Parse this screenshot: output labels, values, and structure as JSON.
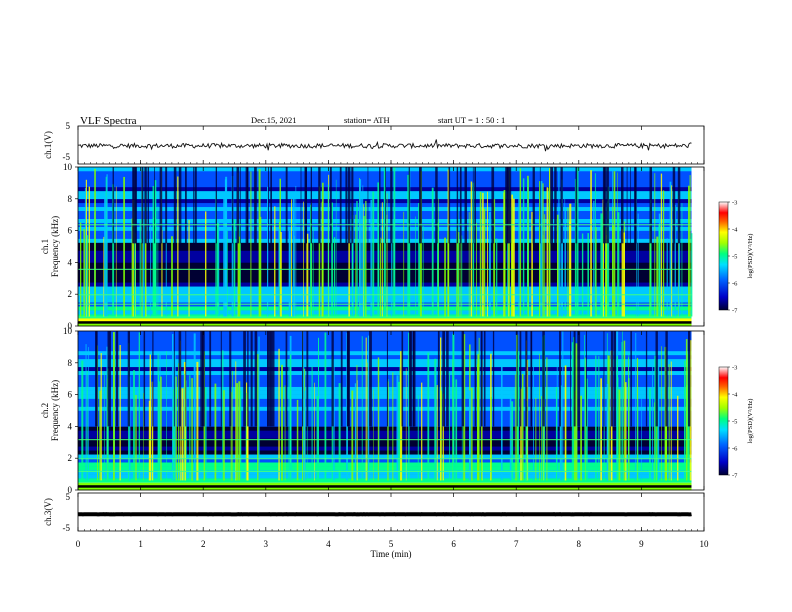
{
  "header": {
    "title": "VLF  Spectra",
    "date": "Dec.15, 2021",
    "station": "station= ATH",
    "start": "start  UT  =    1  : 50 : 1"
  },
  "chart_data": [
    {
      "type": "line",
      "name": "ch1-waveform",
      "ylabel": "ch.1(V)",
      "ylim": [
        -5,
        5
      ],
      "yticks": [
        "5",
        "-5"
      ],
      "xlim": [
        0,
        10
      ],
      "baseline": -0.2,
      "data_end": 9.8
    },
    {
      "type": "heatmap",
      "name": "ch1-spectrogram",
      "ylabel": "ch.1\nFrequency  (kHz)",
      "ylim": [
        0,
        10
      ],
      "yticks": [
        "0",
        "2",
        "4",
        "6",
        "8",
        "10"
      ],
      "xlim": [
        0,
        10
      ],
      "data_end": 9.8,
      "colorbar": {
        "label": "log(PSD)(V²/Hz)",
        "range": [
          -7,
          -3
        ],
        "ticks": [
          "-3",
          "-4",
          "-5",
          "-6",
          "-7"
        ]
      }
    },
    {
      "type": "heatmap",
      "name": "ch2-spectrogram",
      "ylabel": "ch.2\nFrequency  (kHz)",
      "ylim": [
        0,
        10
      ],
      "yticks": [
        "0",
        "2",
        "4",
        "6",
        "8",
        "10"
      ],
      "xlim": [
        0,
        10
      ],
      "data_end": 9.8,
      "colorbar": {
        "label": "log(PSD)(V²/Hz)",
        "range": [
          -7,
          -3
        ],
        "ticks": [
          "-3",
          "-4",
          "-5",
          "-6",
          "-7"
        ]
      }
    },
    {
      "type": "line",
      "name": "ch3-waveform",
      "ylabel": "ch.3(V)",
      "ylim": [
        -5,
        5
      ],
      "yticks": [
        "5",
        "-5"
      ],
      "xlim": [
        0,
        10
      ],
      "baseline": -0.6,
      "data_end": 9.8
    }
  ],
  "xaxis": {
    "label": "Time  (min)",
    "ticks": [
      "0",
      "1",
      "2",
      "3",
      "4",
      "5",
      "6",
      "7",
      "8",
      "9",
      "10"
    ]
  },
  "colors": {
    "colormap": [
      "#000033",
      "#0000a0",
      "#0050ff",
      "#00c8ff",
      "#00ff90",
      "#80ff00",
      "#ffff00",
      "#ff8000",
      "#ff0000",
      "#ffffff"
    ]
  }
}
